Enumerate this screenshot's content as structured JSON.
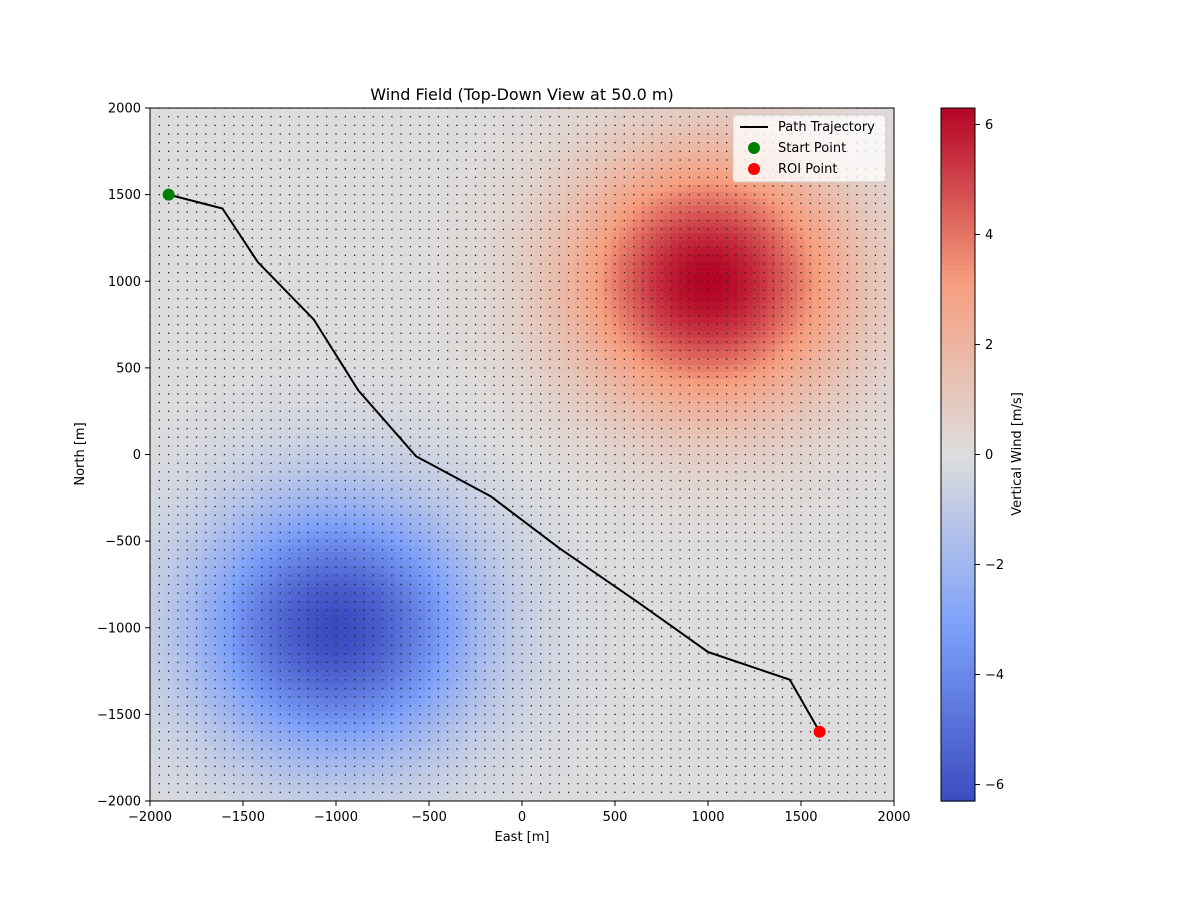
{
  "chart_data": {
    "type": "heatmap",
    "title": "Wind Field (Top-Down View at 50.0 m)",
    "xlabel": "East [m]",
    "ylabel": "North [m]",
    "xlim": [
      -2000,
      2000
    ],
    "ylim": [
      -2000,
      2000
    ],
    "xticks": [
      -2000,
      -1500,
      -1000,
      -500,
      0,
      500,
      1000,
      1500,
      2000
    ],
    "yticks": [
      -2000,
      -1500,
      -1000,
      -500,
      0,
      500,
      1000,
      1500,
      2000
    ],
    "xtick_labels": [
      "−2000",
      "−1500",
      "−1000",
      "−500",
      "0",
      "500",
      "1000",
      "1500",
      "2000"
    ],
    "ytick_labels": [
      "−2000",
      "−1500",
      "−1000",
      "−500",
      "0",
      "500",
      "1000",
      "1500",
      "2000"
    ],
    "colormap": "coolwarm",
    "colorbar": {
      "label": "Vertical Wind [m/s]",
      "min": -6.3,
      "max": 6.3,
      "ticks": [
        -6,
        -4,
        -2,
        0,
        2,
        4,
        6
      ],
      "tick_labels": [
        "−6",
        "−4",
        "−2",
        "0",
        "2",
        "4",
        "6"
      ]
    },
    "field": {
      "sources": [
        {
          "x": 1000,
          "y": 1000,
          "peak": 6.3
        },
        {
          "x": -1000,
          "y": -1000,
          "peak": -6.3
        }
      ],
      "sigma": 500
    },
    "quiver_grid": {
      "step": 50
    },
    "path": {
      "name": "Path Trajectory",
      "color": "#000000",
      "x": [
        -1900,
        -1610,
        -1420,
        -1120,
        -880,
        -570,
        -170,
        200,
        620,
        1000,
        1440,
        1600
      ],
      "y": [
        1500,
        1420,
        1110,
        780,
        370,
        -10,
        -240,
        -540,
        -850,
        -1140,
        -1300,
        -1600
      ]
    },
    "points": [
      {
        "name": "Start Point",
        "x": -1900,
        "y": 1500,
        "color": "#008000"
      },
      {
        "name": "ROI Point",
        "x": 1600,
        "y": -1600,
        "color": "#ff0000"
      }
    ],
    "legend": {
      "placement": "top-right",
      "entries": [
        "Path Trajectory",
        "Start Point",
        "ROI Point"
      ]
    },
    "grid": false
  }
}
